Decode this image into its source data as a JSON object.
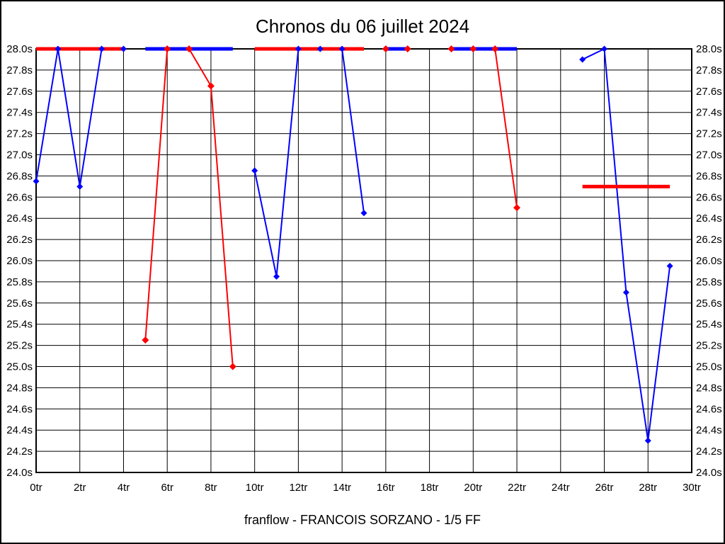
{
  "chart_data": {
    "type": "line",
    "title": "Chronos du 06 juillet 2024",
    "footer": "franflow - FRANCOIS SORZANO - 1/5 FF",
    "x_unit": "tr",
    "y_unit": "s",
    "xlim": [
      0,
      30
    ],
    "ylim": [
      24.0,
      28.0
    ],
    "x_tick_step": 2,
    "y_tick_step": 0.2,
    "x_tick_labels": [
      "0tr",
      "2tr",
      "4tr",
      "6tr",
      "8tr",
      "10tr",
      "12tr",
      "14tr",
      "16tr",
      "18tr",
      "20tr",
      "22tr",
      "24tr",
      "26tr",
      "28tr",
      "30tr"
    ],
    "y_tick_labels": [
      "28.0s",
      "27.8s",
      "27.6s",
      "27.4s",
      "27.2s",
      "27.0s",
      "26.8s",
      "26.6s",
      "26.4s",
      "26.2s",
      "26.0s",
      "25.8s",
      "25.6s",
      "25.4s",
      "25.2s",
      "25.0s",
      "24.8s",
      "24.6s",
      "24.4s",
      "24.2s",
      "24.0s"
    ],
    "grid": true,
    "legend_position": "none",
    "series": [
      {
        "name": "blue",
        "color": "#0000ff",
        "points": [
          [
            0,
            26.75
          ],
          [
            1,
            28.0
          ],
          [
            2,
            26.7
          ],
          [
            3,
            28.0
          ],
          [
            4,
            28.0
          ],
          [
            5,
            28.0
          ],
          [
            9,
            28.0
          ],
          [
            10,
            26.85
          ],
          [
            11,
            25.85
          ],
          [
            12,
            28.0
          ],
          [
            13,
            28.0
          ],
          [
            14,
            28.0
          ],
          [
            15,
            26.45
          ],
          [
            16,
            28.0
          ],
          [
            17,
            28.0
          ],
          [
            19,
            28.0
          ],
          [
            22,
            28.0
          ],
          [
            25,
            27.9
          ],
          [
            26,
            28.0
          ],
          [
            27,
            25.7
          ],
          [
            28,
            24.3
          ],
          [
            29,
            25.95
          ]
        ]
      },
      {
        "name": "red",
        "color": "#ff0000",
        "points": [
          [
            0,
            28.0
          ],
          [
            4,
            28.0
          ],
          [
            5,
            25.25
          ],
          [
            6,
            28.0
          ],
          [
            7,
            28.0
          ],
          [
            8,
            27.65
          ],
          [
            9,
            25.0
          ],
          [
            10,
            28.0
          ],
          [
            15,
            28.0
          ],
          [
            16,
            28.0
          ],
          [
            17,
            28.0
          ],
          [
            19,
            28.0
          ],
          [
            20,
            28.0
          ],
          [
            21,
            28.0
          ],
          [
            22,
            26.5
          ],
          [
            25,
            26.7
          ],
          [
            29,
            26.7
          ]
        ]
      }
    ],
    "line_layers": [
      {
        "series": "blue",
        "pts": [
          [
            0,
            26.75
          ],
          [
            1,
            28.0
          ],
          [
            2,
            26.7
          ],
          [
            3,
            28.0
          ],
          [
            4,
            28.0
          ]
        ]
      },
      {
        "series": "blue",
        "pts": [
          [
            10,
            26.85
          ],
          [
            11,
            25.85
          ],
          [
            12,
            28.0
          ],
          [
            13,
            28.0
          ],
          [
            14,
            28.0
          ],
          [
            15,
            26.45
          ]
        ]
      },
      {
        "series": "blue",
        "pts": [
          [
            25,
            27.9
          ],
          [
            26,
            28.0
          ],
          [
            27,
            25.7
          ],
          [
            28,
            24.3
          ],
          [
            29,
            25.95
          ]
        ]
      },
      {
        "series": "red",
        "pts": [
          [
            0,
            28.0
          ],
          [
            4,
            28.0
          ]
        ]
      },
      {
        "series": "red",
        "pts": [
          [
            5,
            25.25
          ],
          [
            6,
            28.0
          ],
          [
            7,
            28.0
          ],
          [
            8,
            27.65
          ],
          [
            9,
            25.0
          ]
        ]
      },
      {
        "series": "red",
        "pts": [
          [
            10,
            28.0
          ],
          [
            15,
            28.0
          ]
        ]
      },
      {
        "series": "red",
        "pts": [
          [
            16,
            28.0
          ],
          [
            17,
            28.0
          ]
        ]
      },
      {
        "series": "red",
        "pts": [
          [
            19,
            28.0
          ],
          [
            21,
            28.0
          ],
          [
            22,
            26.5
          ]
        ]
      },
      {
        "series": "red",
        "pts": [
          [
            25,
            26.7
          ],
          [
            29,
            26.7
          ]
        ]
      },
      {
        "series": "blue",
        "pts": [
          [
            5,
            28.0
          ],
          [
            9,
            28.0
          ]
        ]
      },
      {
        "series": "blue",
        "pts": [
          [
            16,
            28.0
          ],
          [
            17,
            28.0
          ]
        ]
      },
      {
        "series": "blue",
        "pts": [
          [
            19,
            28.0
          ],
          [
            22,
            28.0
          ]
        ]
      }
    ],
    "markers": {
      "blue": [
        [
          0,
          26.75
        ],
        [
          1,
          28.0
        ],
        [
          2,
          26.7
        ],
        [
          3,
          28.0
        ],
        [
          4,
          28.0
        ],
        [
          10,
          26.85
        ],
        [
          11,
          25.85
        ],
        [
          12,
          28.0
        ],
        [
          13,
          28.0
        ],
        [
          14,
          28.0
        ],
        [
          15,
          26.45
        ],
        [
          25,
          27.9
        ],
        [
          26,
          28.0
        ],
        [
          27,
          25.7
        ],
        [
          28,
          24.3
        ],
        [
          29,
          25.95
        ]
      ],
      "red": [
        [
          5,
          25.25
        ],
        [
          6,
          28.0
        ],
        [
          7,
          28.0
        ],
        [
          8,
          27.65
        ],
        [
          9,
          25.0
        ],
        [
          16,
          28.0
        ],
        [
          17,
          28.0
        ],
        [
          19,
          28.0
        ],
        [
          20,
          28.0
        ],
        [
          21,
          28.0
        ],
        [
          22,
          26.5
        ]
      ]
    }
  }
}
